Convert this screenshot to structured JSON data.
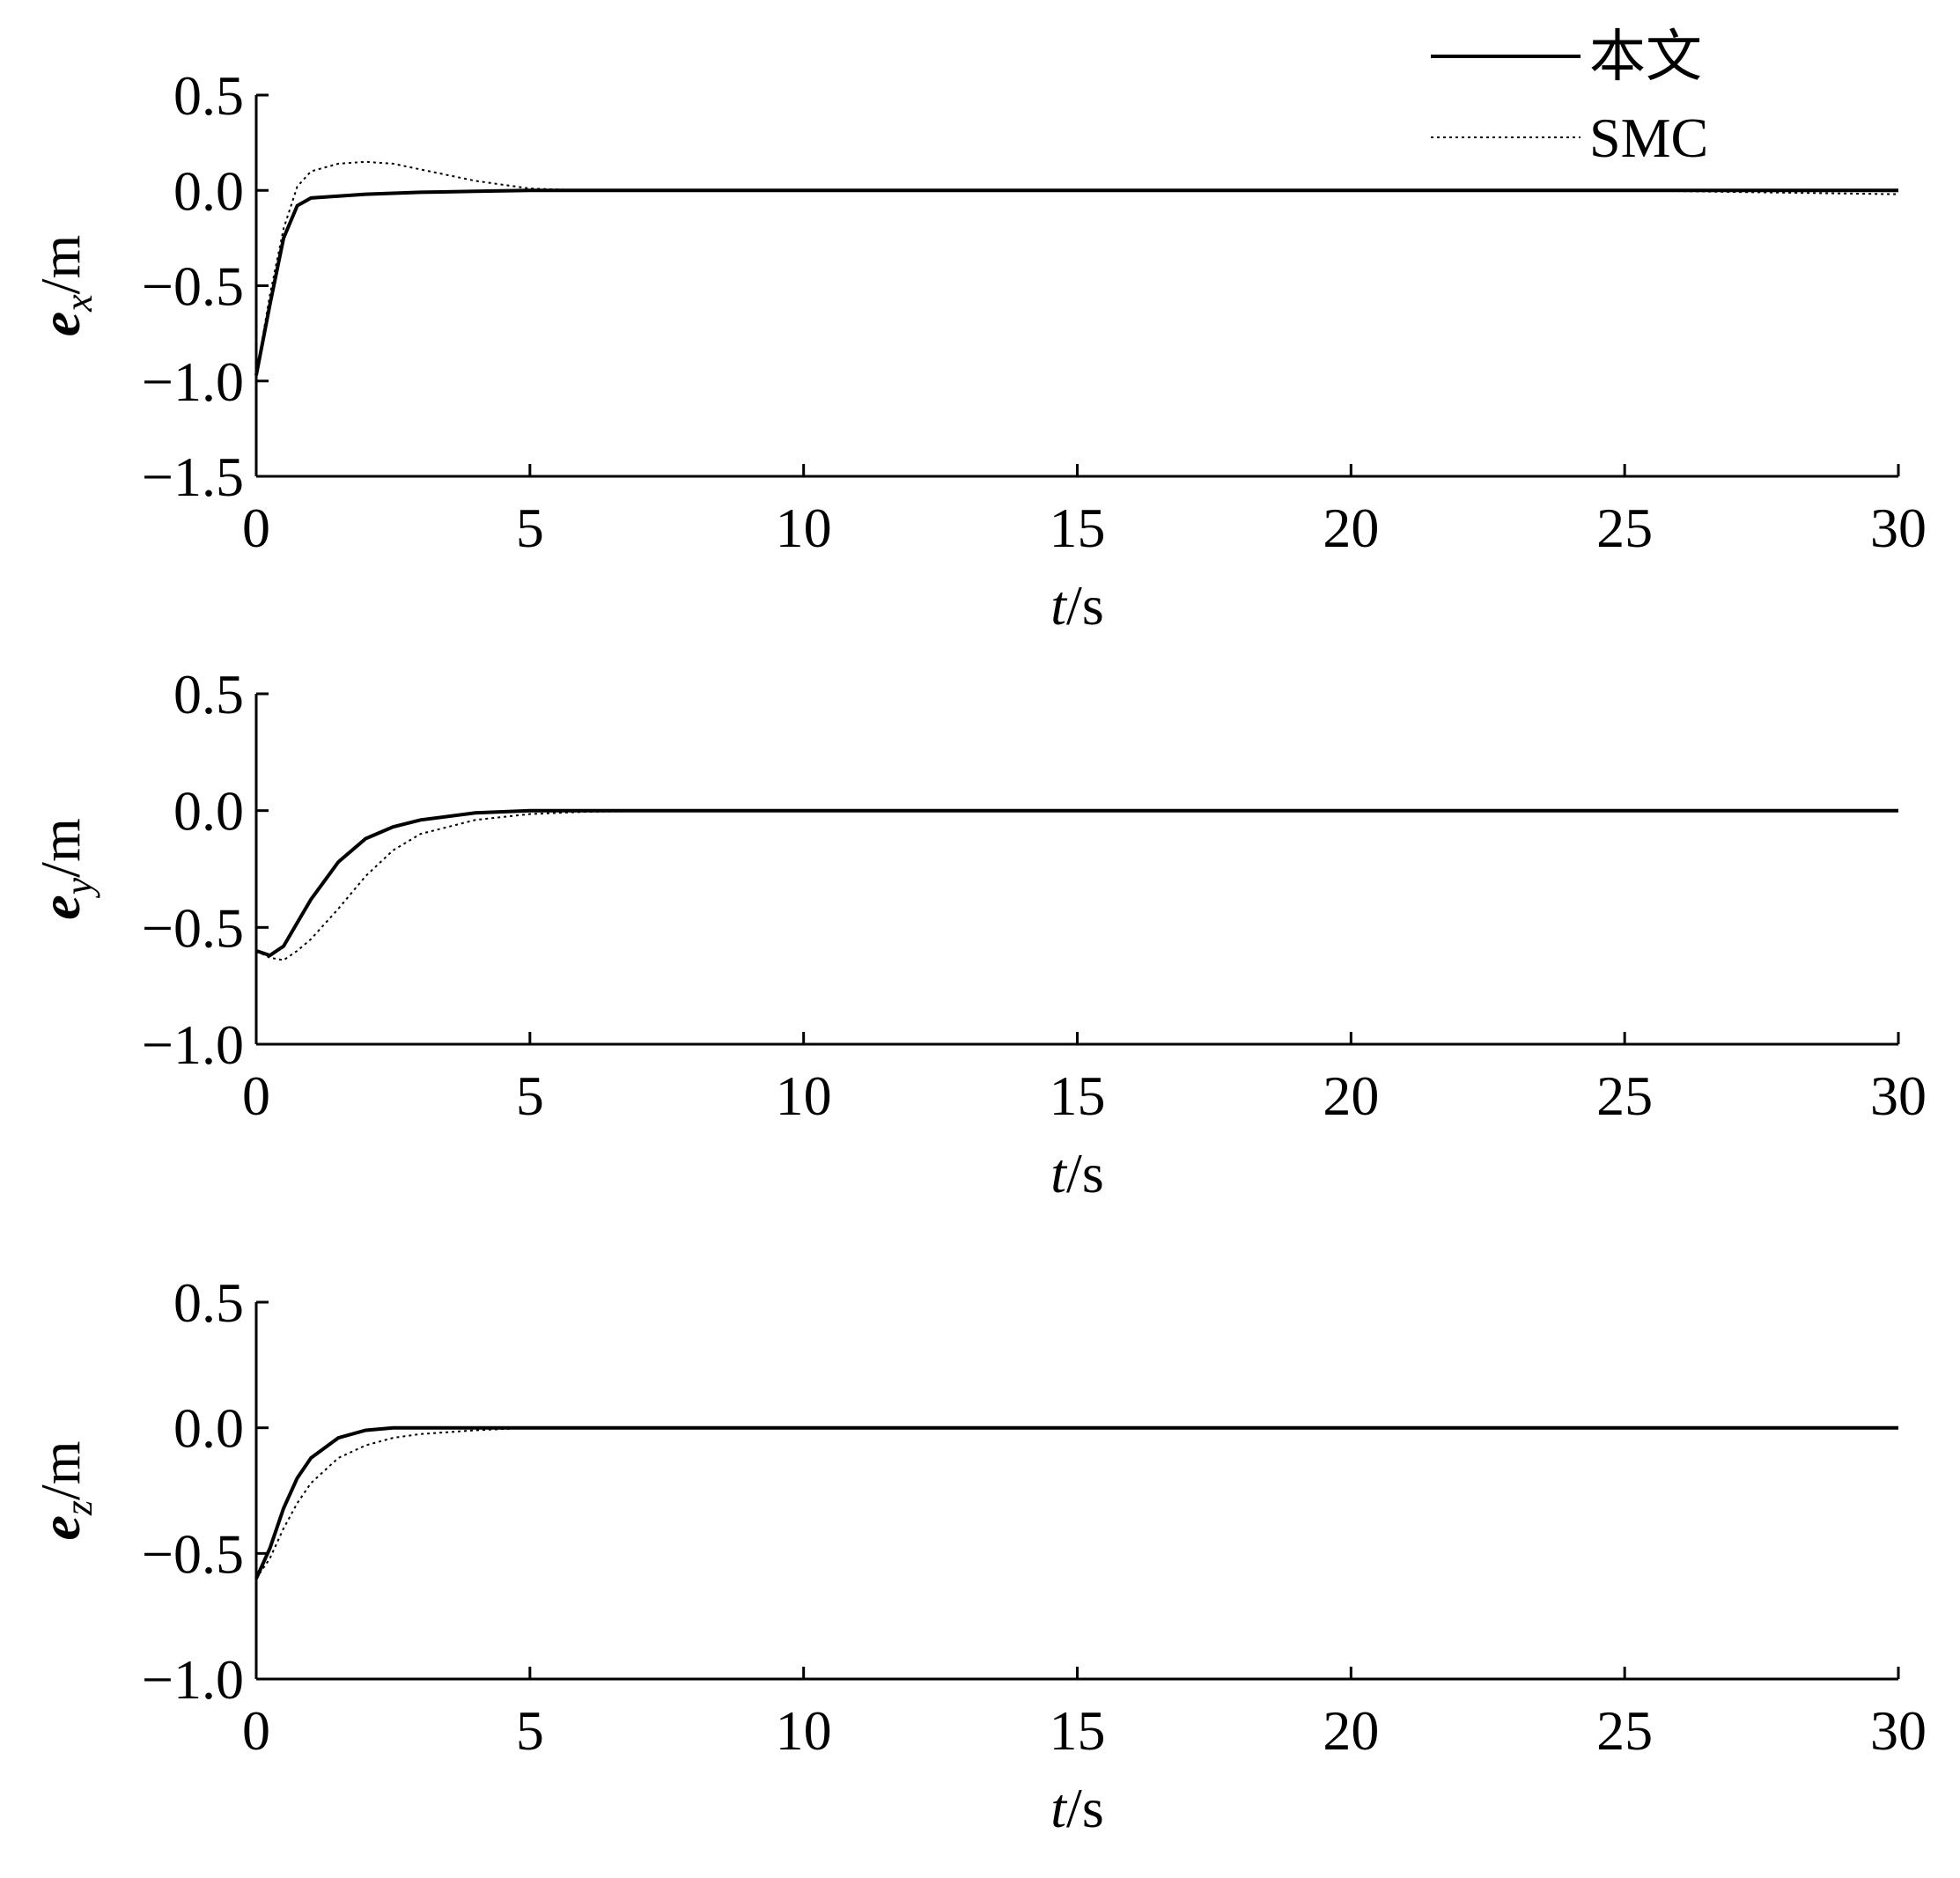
{
  "chart_data": [
    {
      "type": "line",
      "xlabel_var": "t",
      "xlabel_unit": "/s",
      "ylabel_var": "e",
      "ylabel_sub": "x",
      "ylabel_unit": "/m",
      "x": [
        0,
        0.25,
        0.5,
        0.75,
        1,
        1.5,
        2,
        2.5,
        3,
        4,
        5,
        6,
        8,
        10,
        15,
        20,
        25,
        30
      ],
      "series": [
        {
          "name": "本文",
          "color": "#000000",
          "linestyle": "solid",
          "values": [
            -0.97,
            -0.6,
            -0.25,
            -0.08,
            -0.04,
            -0.03,
            -0.02,
            -0.015,
            -0.01,
            -0.005,
            0,
            0,
            0,
            0,
            0,
            0,
            0,
            0
          ]
        },
        {
          "name": "SMC",
          "color": "#000000",
          "linestyle": "dotted",
          "values": [
            -0.97,
            -0.55,
            -0.2,
            0.02,
            0.1,
            0.14,
            0.15,
            0.14,
            0.11,
            0.05,
            0.01,
            0,
            0,
            0,
            0,
            0,
            0,
            -0.02
          ]
        }
      ],
      "xlim": [
        0,
        30
      ],
      "xticks": [
        0,
        5,
        10,
        15,
        20,
        25,
        30
      ],
      "ylim": [
        -1.5,
        0.5
      ],
      "yticks": [
        0.5,
        {
          "value": 0,
          "label": "0.0"
        },
        {
          "value": -0.5,
          "label": "−0.5"
        },
        {
          "value": -1,
          "label": "−1.0"
        },
        {
          "value": -1.5,
          "label": "−1.5"
        }
      ],
      "legend": "upper right"
    },
    {
      "type": "line",
      "xlabel_var": "t",
      "xlabel_unit": "/s",
      "ylabel_var": "e",
      "ylabel_sub": "y",
      "ylabel_unit": "/m",
      "x": [
        0,
        0.25,
        0.5,
        0.75,
        1,
        1.5,
        2,
        2.5,
        3,
        4,
        5,
        6,
        8,
        10,
        15,
        20,
        25,
        30
      ],
      "series": [
        {
          "color": "#000000",
          "linestyle": "solid",
          "values": [
            -0.6,
            -0.62,
            -0.58,
            -0.48,
            -0.38,
            -0.22,
            -0.12,
            -0.07,
            -0.04,
            -0.01,
            0,
            0,
            0,
            0,
            0,
            0,
            0,
            0
          ]
        },
        {
          "color": "#000000",
          "linestyle": "dotted",
          "values": [
            -0.6,
            -0.63,
            -0.64,
            -0.6,
            -0.55,
            -0.42,
            -0.28,
            -0.17,
            -0.1,
            -0.04,
            -0.015,
            -0.005,
            0,
            0,
            0,
            0,
            0,
            0
          ]
        }
      ],
      "xlim": [
        0,
        30
      ],
      "xticks": [
        0,
        5,
        10,
        15,
        20,
        25,
        30
      ],
      "ylim": [
        -1,
        0.5
      ],
      "yticks": [
        0.5,
        {
          "value": 0,
          "label": "0.0"
        },
        {
          "value": -0.5,
          "label": "−0.5"
        },
        {
          "value": -1,
          "label": "−1.0"
        }
      ]
    },
    {
      "type": "line",
      "xlabel_var": "t",
      "xlabel_unit": "/s",
      "ylabel_var": "e",
      "ylabel_sub": "z",
      "ylabel_unit": "/m",
      "x": [
        0,
        0.25,
        0.5,
        0.75,
        1,
        1.5,
        2,
        2.5,
        3,
        4,
        5,
        6,
        8,
        10,
        15,
        20,
        25,
        30
      ],
      "series": [
        {
          "color": "#000000",
          "linestyle": "solid",
          "values": [
            -0.6,
            -0.48,
            -0.32,
            -0.2,
            -0.12,
            -0.04,
            -0.01,
            0,
            0,
            0,
            0,
            0,
            0,
            0,
            0,
            0,
            0,
            0
          ]
        },
        {
          "color": "#000000",
          "linestyle": "dotted",
          "values": [
            -0.6,
            -0.52,
            -0.4,
            -0.3,
            -0.22,
            -0.12,
            -0.07,
            -0.04,
            -0.025,
            -0.01,
            0,
            0,
            0,
            0,
            0,
            0,
            0,
            0
          ]
        }
      ],
      "xlim": [
        0,
        30
      ],
      "xticks": [
        0,
        5,
        10,
        15,
        20,
        25,
        30
      ],
      "ylim": [
        -1,
        0.5
      ],
      "yticks": [
        0.5,
        {
          "value": 0,
          "label": "0.0"
        },
        {
          "value": -0.5,
          "label": "−0.5"
        },
        {
          "value": -1,
          "label": "−1.0"
        }
      ]
    }
  ]
}
